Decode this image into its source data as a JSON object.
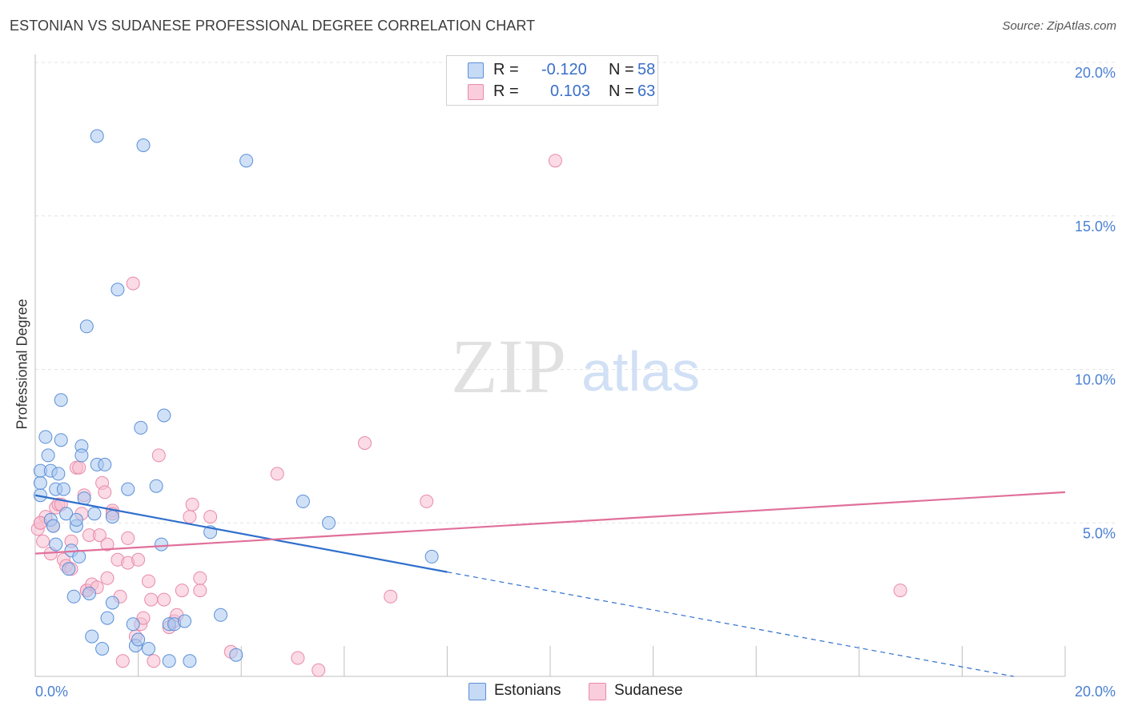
{
  "title": "ESTONIAN VS SUDANESE PROFESSIONAL DEGREE CORRELATION CHART",
  "source": "Source: ZipAtlas.com",
  "watermark": {
    "zip": "ZIP",
    "atlas": "atlas"
  },
  "legend": {
    "rows": [
      {
        "label": "R =",
        "r": "-0.120",
        "n_label": "N =",
        "n": "58"
      },
      {
        "label": "R =",
        "r": "0.103",
        "n_label": "N =",
        "n": "63"
      }
    ]
  },
  "bottom_legend": {
    "estonians": "Estonians",
    "sudanese": "Sudanese"
  },
  "colors": {
    "blue_fill": "#aac8f0",
    "blue_stroke": "#5b8fd8",
    "blue_line": "#2f6fcc",
    "pink_fill": "#f7bdd0",
    "pink_stroke": "#e88aaa",
    "pink_line": "#e0709a",
    "tick_text": "#4a7fd4"
  },
  "chart_data": {
    "type": "scatter",
    "title": "ESTONIAN VS SUDANESE PROFESSIONAL DEGREE CORRELATION CHART",
    "xlabel": "",
    "ylabel": "Professional Degree",
    "xlim": [
      0,
      20
    ],
    "ylim": [
      0,
      20
    ],
    "x_tick_labels": [
      "0.0%",
      "20.0%"
    ],
    "y_ticks": [
      5,
      10,
      15,
      20
    ],
    "y_tick_labels": [
      "5.0%",
      "10.0%",
      "15.0%",
      "20.0%"
    ],
    "series": [
      {
        "name": "Estonians",
        "r": -0.12,
        "n": 58,
        "trend": {
          "x0": 0,
          "y0": 5.9,
          "x1": 8.0,
          "y1": 3.4,
          "dash_to_x": 19.0,
          "dash_to_y": 0.0
        },
        "points": [
          [
            0.1,
            5.9
          ],
          [
            0.1,
            6.3
          ],
          [
            0.1,
            6.7
          ],
          [
            0.2,
            7.8
          ],
          [
            0.25,
            7.2
          ],
          [
            0.3,
            6.7
          ],
          [
            0.3,
            5.1
          ],
          [
            0.35,
            4.9
          ],
          [
            0.4,
            6.1
          ],
          [
            0.4,
            4.3
          ],
          [
            0.45,
            6.6
          ],
          [
            0.5,
            7.7
          ],
          [
            0.5,
            9.0
          ],
          [
            0.55,
            6.1
          ],
          [
            0.6,
            5.3
          ],
          [
            0.65,
            3.5
          ],
          [
            0.7,
            4.1
          ],
          [
            0.75,
            2.6
          ],
          [
            0.8,
            4.9
          ],
          [
            0.8,
            5.1
          ],
          [
            0.85,
            3.9
          ],
          [
            0.9,
            7.5
          ],
          [
            0.9,
            7.2
          ],
          [
            0.95,
            5.8
          ],
          [
            1.0,
            11.4
          ],
          [
            1.05,
            2.7
          ],
          [
            1.1,
            1.3
          ],
          [
            1.15,
            5.3
          ],
          [
            1.2,
            6.9
          ],
          [
            1.2,
            17.6
          ],
          [
            1.3,
            0.9
          ],
          [
            1.35,
            6.9
          ],
          [
            1.4,
            1.9
          ],
          [
            1.5,
            2.4
          ],
          [
            1.5,
            5.2
          ],
          [
            1.6,
            12.6
          ],
          [
            1.8,
            6.1
          ],
          [
            1.9,
            1.7
          ],
          [
            1.95,
            1.0
          ],
          [
            2.0,
            1.2
          ],
          [
            2.05,
            8.1
          ],
          [
            2.1,
            17.3
          ],
          [
            2.2,
            0.9
          ],
          [
            2.35,
            6.2
          ],
          [
            2.45,
            4.3
          ],
          [
            2.5,
            8.5
          ],
          [
            2.6,
            1.7
          ],
          [
            2.6,
            0.5
          ],
          [
            2.7,
            1.7
          ],
          [
            2.9,
            1.8
          ],
          [
            3.0,
            0.5
          ],
          [
            3.4,
            4.7
          ],
          [
            3.6,
            2.0
          ],
          [
            3.9,
            0.7
          ],
          [
            4.1,
            16.8
          ],
          [
            5.2,
            5.7
          ],
          [
            5.7,
            5.0
          ],
          [
            7.7,
            3.9
          ]
        ]
      },
      {
        "name": "Sudanese",
        "r": 0.103,
        "n": 63,
        "trend": {
          "x0": 0,
          "y0": 4.0,
          "x1": 20.0,
          "y1": 6.0
        },
        "points": [
          [
            0.05,
            4.8
          ],
          [
            0.1,
            5.0
          ],
          [
            0.15,
            4.4
          ],
          [
            0.2,
            5.2
          ],
          [
            0.3,
            4.0
          ],
          [
            0.35,
            4.9
          ],
          [
            0.4,
            5.5
          ],
          [
            0.45,
            5.6
          ],
          [
            0.5,
            5.6
          ],
          [
            0.55,
            3.8
          ],
          [
            0.6,
            3.6
          ],
          [
            0.7,
            3.5
          ],
          [
            0.7,
            4.4
          ],
          [
            0.8,
            6.8
          ],
          [
            0.85,
            6.8
          ],
          [
            0.9,
            5.3
          ],
          [
            0.95,
            5.9
          ],
          [
            1.0,
            2.8
          ],
          [
            1.0,
            2.8
          ],
          [
            1.05,
            4.6
          ],
          [
            1.1,
            3.0
          ],
          [
            1.2,
            2.9
          ],
          [
            1.25,
            4.6
          ],
          [
            1.3,
            6.3
          ],
          [
            1.35,
            6.0
          ],
          [
            1.4,
            3.2
          ],
          [
            1.4,
            4.3
          ],
          [
            1.5,
            5.4
          ],
          [
            1.5,
            5.3
          ],
          [
            1.6,
            3.8
          ],
          [
            1.65,
            2.6
          ],
          [
            1.7,
            0.5
          ],
          [
            1.8,
            3.7
          ],
          [
            1.8,
            4.5
          ],
          [
            1.9,
            12.8
          ],
          [
            1.95,
            1.3
          ],
          [
            2.0,
            3.8
          ],
          [
            2.05,
            1.7
          ],
          [
            2.1,
            1.9
          ],
          [
            2.2,
            3.1
          ],
          [
            2.25,
            2.5
          ],
          [
            2.3,
            0.5
          ],
          [
            2.4,
            7.2
          ],
          [
            2.5,
            2.5
          ],
          [
            2.6,
            1.6
          ],
          [
            2.7,
            1.8
          ],
          [
            2.75,
            2.0
          ],
          [
            2.85,
            2.8
          ],
          [
            3.0,
            5.2
          ],
          [
            3.05,
            5.6
          ],
          [
            3.2,
            2.8
          ],
          [
            3.2,
            3.2
          ],
          [
            3.4,
            5.2
          ],
          [
            3.8,
            0.8
          ],
          [
            4.7,
            6.6
          ],
          [
            5.1,
            0.6
          ],
          [
            5.5,
            0.2
          ],
          [
            6.4,
            7.6
          ],
          [
            6.9,
            2.6
          ],
          [
            7.6,
            5.7
          ],
          [
            10.1,
            16.8
          ],
          [
            16.8,
            2.8
          ],
          [
            0.1,
            5.0
          ]
        ]
      }
    ]
  }
}
